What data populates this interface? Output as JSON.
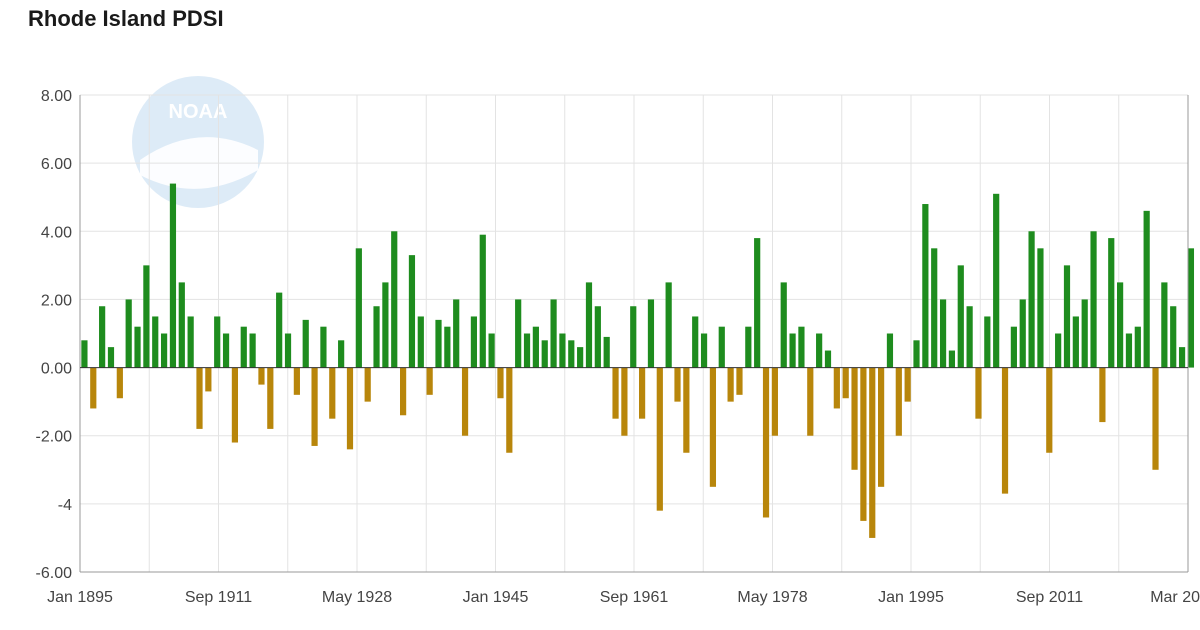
{
  "chart_data": {
    "type": "bar",
    "title": "Rhode Island PDSI",
    "xlabel": "",
    "ylabel": "",
    "ylim": [
      -6,
      8
    ],
    "y_ticks": [
      "8.00",
      "6.00",
      "4.00",
      "2.00",
      "0.00",
      "-2.00",
      "-4",
      "-6.00"
    ],
    "x_ticks": [
      "Jan 1895",
      "Sep 1911",
      "May 1928",
      "Jan 1945",
      "Sep 1961",
      "May 1978",
      "Jan 1995",
      "Sep 2011",
      "Mar 20"
    ],
    "x_range": [
      "1895-01",
      "2020-03"
    ],
    "grid": true,
    "colors": {
      "positive": "#1e8c1e",
      "negative": "#b8860b"
    },
    "watermark": "NOAA",
    "series": [
      {
        "x_start": 1895.0,
        "x_step": 1.0,
        "values": [
          0.8,
          -1.2,
          1.8,
          0.6,
          -0.9,
          2.0,
          1.2,
          3.0,
          1.5,
          1.0,
          5.4,
          2.5,
          1.5,
          -1.8,
          -0.7,
          1.5,
          1.0,
          -2.2,
          1.2,
          1.0,
          -0.5,
          -1.8,
          2.2,
          1.0,
          -0.8,
          1.4,
          -2.3,
          1.2,
          -1.5,
          0.8,
          -2.4,
          3.5,
          -1.0,
          1.8,
          2.5,
          4.0,
          -1.4,
          3.3,
          1.5,
          -0.8,
          1.4,
          1.2,
          2.0,
          -2.0,
          1.5,
          3.9,
          1.0,
          -0.9,
          -2.5,
          2.0,
          1.0,
          1.2,
          0.8,
          2.0,
          1.0,
          0.8,
          0.6,
          2.5,
          1.8,
          0.9,
          -1.5,
          -2.0,
          1.8,
          -1.5,
          2.0,
          -4.2,
          2.5,
          -1.0,
          -2.5,
          1.5,
          1.0,
          -3.5,
          1.2,
          -1.0,
          -0.8,
          1.2,
          3.8,
          -4.4,
          -2.0,
          2.5,
          1.0,
          1.2,
          -2.0,
          1.0,
          0.5,
          -1.2,
          -0.9,
          -3.0,
          -4.5,
          -5.0,
          -3.5,
          1.0,
          -2.0,
          -1.0,
          0.8,
          4.8,
          3.5,
          2.0,
          0.5,
          3.0,
          1.8,
          -1.5,
          1.5,
          5.1,
          -3.7,
          1.2,
          2.0,
          4.0,
          3.5,
          -2.5,
          1.0,
          3.0,
          1.5,
          2.0,
          4.0,
          -1.6,
          3.8,
          2.5,
          1.0,
          1.2,
          4.6,
          -3.0,
          2.5,
          1.8,
          0.6,
          3.5
        ]
      }
    ]
  }
}
